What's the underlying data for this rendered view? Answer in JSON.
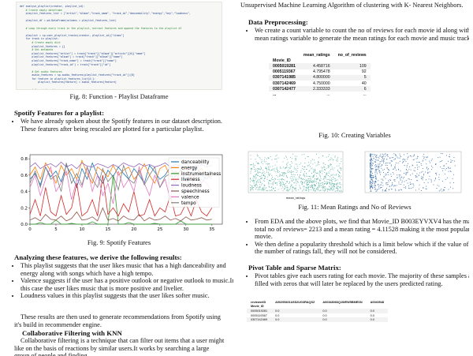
{
  "left": {
    "code_lines": [
      "def analyse_playlist(creator, playlist_id):",
      "    # Create empty dataframe",
      "    playlist_features_list = [\"artist\",\"album\",\"track_name\", \"track_id\",\"danceability\",\"energy\",\"key\",\"loudness\",",
      "    ",
      "    playlist_df = pd.DataFrame(columns = playlist_features_list)",
      "    ",
      "    # Loop through every track in the playlist, extract features and append the features to the playlist df",
      "    ",
      "    playlist = sp.user_playlist_tracks(creator, playlist_id)[\"items\"]",
      "    for track in playlist:",
      "        # Create empty dict",
      "        playlist_features = {}",
      "        # Get metadata",
      "        playlist_features[\"artist\"] = track[\"track\"][\"album\"][\"artists\"][0][\"name\"]",
      "        playlist_features[\"album\"] = track[\"track\"][\"album\"][\"name\"]",
      "        playlist_features[\"track_name\"] = track[\"track\"][\"name\"]",
      "        playlist_features[\"track_id\"] = track[\"track\"][\"id\"]",
      "    ",
      "        # Get audio features",
      "        audio_features = sp.audio_features(playlist_features[\"track_id\"])[0]",
      "        for feature in playlist_features_list[4:]:",
      "            playlist_features[feature] = audio_features[feature]",
      "    ",
      "        # Concat the dfs",
      "        track_df = pd.DataFrame(playlist_features, index = [0])",
      "        playlist_df = pd.concat([playlist_df, track_df], ignore_index = True)",
      "    ",
      "    return playlist_df"
    ],
    "fig8_caption": "Fig. 8: Function - Playlist Dataframe",
    "spotify_heading": "Spotify Features for a playlist:",
    "spotify_bullet": "We have already spoken about the Spotify features in our dataset description. These features after being rescaled are plotted for a particular playlist.",
    "fig9_caption": "Fig. 9: Spotify Features",
    "analysis_heading": "Analyzing these features, we derive the following results:",
    "analysis_bullets": [
      "This playlist suggests that the user likes music that has a high danceability and energy along with songs which have a high tempo.",
      "Valence suggests if the user has a positive outlook or negative outlook to music.In this case the user likes music that is more positive and livelier.",
      "Loudness values in this playlist suggests that the user likes softer music."
    ],
    "results_para": "These results are then used to generate recommendations from Spotify using it's build in recommender engine.",
    "cf_heading": "Collaborative Filtering with KNN",
    "cf_para": "Collaborative filtering is a technique that can filter out items that a user might like on the basis of reactions by similar users.It works by searching a large group of people and finding"
  },
  "right": {
    "intro_para": "Unsupervised Machine Learning Algorithm of clustering with K- Nearest Neighbors.",
    "dp_heading": "Data Preprocessing:",
    "dp_bullet": "We create a count variable to count the no of reviews for each movie id along with mean ratings variable to generate the mean ratings for each movie and music track.",
    "table1": {
      "columns": [
        "mean_ratings",
        "no_of_reviews"
      ],
      "index_name": "Movie_ID",
      "rows": [
        {
          "id": "0005019281",
          "mean": "4.458716",
          "count": "109"
        },
        {
          "id": "0005119367",
          "mean": "4.795478",
          "count": "92"
        },
        {
          "id": "0307141985",
          "mean": "4.800000",
          "count": "5"
        },
        {
          "id": "0307142469",
          "mean": "4.750000",
          "count": "40"
        },
        {
          "id": "0307142477",
          "mean": "2.333333",
          "count": "6"
        }
      ],
      "ellipsis": "..."
    },
    "fig10_caption": "Fig. 10: Creating Variables",
    "fig11_caption": "Fig. 11: Mean Ratings and No of Reviews",
    "eda_bullets": [
      "From EDA and the above plots, we find that Movie_ID B003EYVXV4 has the max total no of reviews= 2213 and a mean rating = 4.11528 making it the most popular movie.",
      "We then define a popularity threshold which is a limit below which if the value of the number of ratings fall, they will not be considered."
    ],
    "pivot_heading": "Pivot Table and Sparse Matrix:",
    "pivot_bullet": "Pivot tables give each users rating for each movie. The majority of these samples are filled with zeros that will later be replaced by the users predicted rating.",
    "table2": {
      "corner": "reviewerID",
      "columns": [
        "A00295401U6S2UG3RAQSZ",
        "A00348066Q1WEW5BMESN",
        "A0040548"
      ],
      "index_name": "Movie_ID",
      "rows": [
        {
          "id": "0005019281",
          "vals": [
            "0.0",
            "0.0",
            "0.0"
          ]
        },
        {
          "id": "0005119367",
          "vals": [
            "0.0",
            "0.0",
            "0.0"
          ]
        },
        {
          "id": "0307142469",
          "vals": [
            "0.0",
            "0.0",
            "0.0"
          ]
        }
      ]
    }
  },
  "chart_data": [
    {
      "type": "line",
      "xlim": [
        0,
        37
      ],
      "ylim": [
        0,
        0.85
      ],
      "xticks": [
        0,
        5,
        10,
        15,
        20,
        25,
        30,
        35
      ],
      "yticks": [
        0.0,
        0.2,
        0.4,
        0.6,
        0.8
      ],
      "legend": "top-right",
      "series": [
        {
          "name": "danceability",
          "color": "#1f77b4",
          "values": [
            0.55,
            0.62,
            0.48,
            0.7,
            0.58,
            0.65,
            0.52,
            0.72,
            0.6,
            0.45,
            0.68,
            0.55,
            0.75,
            0.6,
            0.5,
            0.66,
            0.58,
            0.7,
            0.62,
            0.55,
            0.68,
            0.6,
            0.5,
            0.72,
            0.64,
            0.55,
            0.6,
            0.7,
            0.58,
            0.66,
            0.52,
            0.62,
            0.7,
            0.6,
            0.55,
            0.65
          ]
        },
        {
          "name": "energy",
          "color": "#ff7f0e",
          "values": [
            0.6,
            0.7,
            0.55,
            0.75,
            0.65,
            0.5,
            0.72,
            0.6,
            0.68,
            0.55,
            0.78,
            0.62,
            0.5,
            0.7,
            0.65,
            0.58,
            0.72,
            0.6,
            0.66,
            0.7,
            0.55,
            0.62,
            0.74,
            0.6,
            0.5,
            0.68,
            0.72,
            0.58,
            0.65,
            0.6,
            0.7,
            0.55,
            0.62,
            0.68,
            0.6,
            0.58
          ]
        },
        {
          "name": "instrumentalness",
          "color": "#2ca02c",
          "values": [
            0.0,
            0.0,
            0.02,
            0.0,
            0.0,
            0.05,
            0.0,
            0.0,
            0.01,
            0.0,
            0.0,
            0.0,
            0.03,
            0.0,
            0.0,
            0.0,
            0.6,
            0.0,
            0.0,
            0.02,
            0.0,
            0.0,
            0.0,
            0.0,
            0.01,
            0.0,
            0.0,
            0.0,
            0.0,
            0.04,
            0.0,
            0.0,
            0.0,
            0.0,
            0.0,
            0.0
          ]
        },
        {
          "name": "liveness",
          "color": "#d62728",
          "values": [
            0.12,
            0.3,
            0.1,
            0.45,
            0.15,
            0.1,
            0.35,
            0.12,
            0.2,
            0.5,
            0.1,
            0.15,
            0.3,
            0.1,
            0.6,
            0.12,
            0.2,
            0.1,
            0.25,
            0.15,
            0.4,
            0.1,
            0.12,
            0.3,
            0.1,
            0.2,
            0.15,
            0.35,
            0.1,
            0.12,
            0.25,
            0.1,
            0.3,
            0.15,
            0.1,
            0.2
          ]
        },
        {
          "name": "loudness",
          "color": "#9467bd",
          "values": [
            0.7,
            0.75,
            0.68,
            0.72,
            0.74,
            0.7,
            0.76,
            0.7,
            0.73,
            0.68,
            0.75,
            0.71,
            0.7,
            0.74,
            0.72,
            0.69,
            0.73,
            0.7,
            0.75,
            0.72,
            0.7,
            0.74,
            0.71,
            0.73,
            0.7,
            0.72,
            0.75,
            0.7,
            0.73,
            0.71,
            0.74,
            0.7,
            0.72,
            0.73,
            0.7,
            0.72
          ]
        },
        {
          "name": "speechiness",
          "color": "#8c564b",
          "values": [
            0.05,
            0.08,
            0.04,
            0.12,
            0.06,
            0.05,
            0.1,
            0.04,
            0.07,
            0.15,
            0.05,
            0.06,
            0.09,
            0.04,
            0.2,
            0.05,
            0.07,
            0.04,
            0.1,
            0.06,
            0.05,
            0.12,
            0.04,
            0.08,
            0.05,
            0.06,
            0.1,
            0.05,
            0.07,
            0.04,
            0.09,
            0.05,
            0.06,
            0.08,
            0.05,
            0.06
          ]
        },
        {
          "name": "valence",
          "color": "#e377c2",
          "values": [
            0.45,
            0.6,
            0.35,
            0.55,
            0.7,
            0.4,
            0.5,
            0.65,
            0.3,
            0.55,
            0.45,
            0.7,
            0.4,
            0.6,
            0.35,
            0.5,
            0.25,
            0.65,
            0.45,
            0.55,
            0.4,
            0.7,
            0.5,
            0.35,
            0.6,
            0.45,
            0.55,
            0.3,
            0.65,
            0.5,
            0.4,
            0.6,
            0.45,
            0.55,
            0.5,
            0.4
          ]
        },
        {
          "name": "tempo",
          "color": "#7f7f7f",
          "values": [
            0.5,
            0.65,
            0.45,
            0.7,
            0.55,
            0.6,
            0.4,
            0.75,
            0.5,
            0.62,
            0.48,
            0.7,
            0.55,
            0.45,
            0.68,
            0.52,
            0.6,
            0.42,
            0.72,
            0.55,
            0.5,
            0.66,
            0.48,
            0.6,
            0.7,
            0.45,
            0.58,
            0.62,
            0.5,
            0.68,
            0.55,
            0.47,
            0.63,
            0.5,
            0.6,
            0.55
          ]
        }
      ]
    },
    {
      "type": "scatter",
      "xlabel": "mean_ratings",
      "series": [
        {
          "name": "mean_ratings",
          "color": "#5fb3a0"
        },
        {
          "name": "no_of_reviews",
          "color": "#3a6ea5"
        }
      ]
    }
  ]
}
